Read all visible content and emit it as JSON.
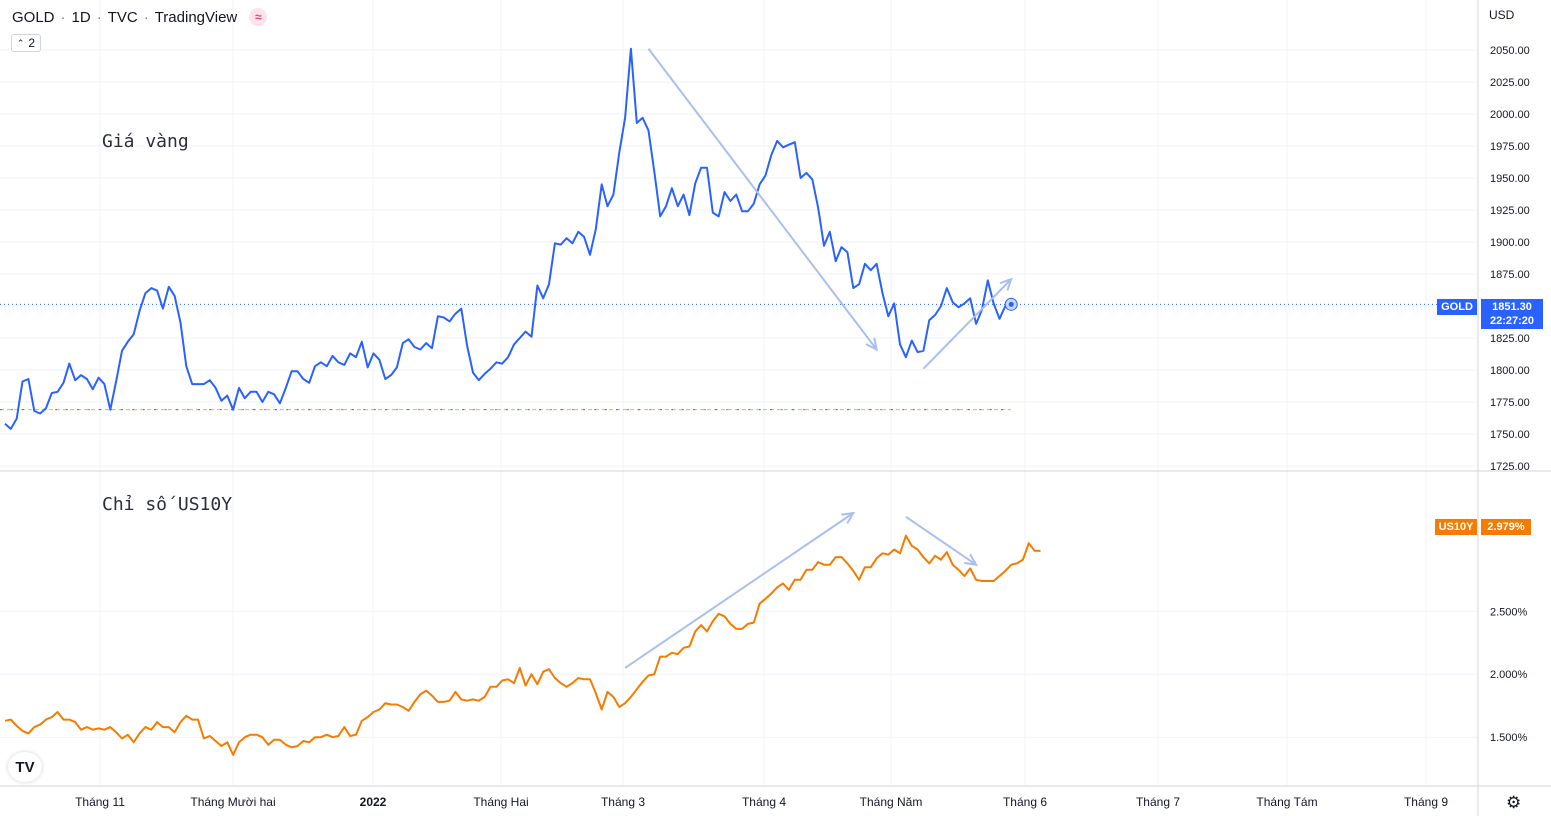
{
  "header": {
    "symbol": "GOLD",
    "interval": "1D",
    "exchange": "TVC",
    "source": "TradingView",
    "badge_icon": "wave-icon",
    "collapse_count": "2"
  },
  "captions": {
    "gold": "Giá vàng",
    "us10y": "Chỉ số US10Y"
  },
  "currency": "USD",
  "tags": {
    "gold_symbol": "GOLD",
    "gold_price": "1851.30",
    "gold_countdown": "22:27:20",
    "us10y_symbol": "US10Y",
    "us10y_value": "2.979%"
  },
  "logo": "TV",
  "colors": {
    "gold_line": "#2962ff",
    "us10y_line": "#f57c00",
    "arrow": "#a9bff0",
    "gold_tag": "#2962ff",
    "us10y_tag": "#f57c00"
  },
  "chart_data": [
    {
      "type": "line",
      "title": "Giá vàng",
      "series": [
        {
          "name": "GOLD",
          "values": [
            1758,
            1754,
            1762,
            1791,
            1793,
            1768,
            1766,
            1770,
            1782,
            1783,
            1790,
            1805,
            1792,
            1796,
            1793,
            1785,
            1794,
            1789,
            1769,
            1791,
            1815,
            1822,
            1828,
            1846,
            1860,
            1864,
            1862,
            1848,
            1865,
            1858,
            1837,
            1803,
            1789,
            1789,
            1789,
            1792,
            1786,
            1776,
            1780,
            1769,
            1786,
            1778,
            1783,
            1783,
            1775,
            1783,
            1781,
            1774,
            1786,
            1799,
            1799,
            1793,
            1790,
            1803,
            1806,
            1803,
            1811,
            1806,
            1804,
            1813,
            1810,
            1822,
            1802,
            1813,
            1808,
            1793,
            1796,
            1802,
            1821,
            1824,
            1818,
            1816,
            1821,
            1817,
            1842,
            1841,
            1838,
            1844,
            1848,
            1819,
            1798,
            1792,
            1797,
            1801,
            1806,
            1805,
            1810,
            1820,
            1825,
            1830,
            1826,
            1866,
            1856,
            1867,
            1899,
            1898,
            1903,
            1899,
            1908,
            1904,
            1890,
            1910,
            1945,
            1928,
            1937,
            1970,
            1997,
            2051,
            1993,
            1997,
            1987,
            1955,
            1920,
            1928,
            1942,
            1928,
            1937,
            1921,
            1946,
            1958,
            1958,
            1923,
            1920,
            1939,
            1932,
            1937,
            1924,
            1924,
            1930,
            1945,
            1952,
            1968,
            1979,
            1974,
            1976,
            1978,
            1950,
            1954,
            1949,
            1927,
            1897,
            1908,
            1885,
            1896,
            1892,
            1864,
            1867,
            1883,
            1878,
            1883,
            1860,
            1842,
            1852,
            1820,
            1810,
            1823,
            1814,
            1815,
            1839,
            1843,
            1850,
            1864,
            1853,
            1849,
            1852,
            1856,
            1836,
            1847,
            1870,
            1852,
            1840,
            1850,
            1851.3
          ]
        }
      ],
      "ylim": [
        1725,
        2075
      ],
      "yticks": [
        1725,
        1750,
        1775,
        1800,
        1825,
        1850,
        1875,
        1900,
        1925,
        1950,
        1975,
        2000,
        2025,
        2050
      ],
      "ytick_labels": [
        "1725.00",
        "1750.00",
        "1775.00",
        "1800.00",
        "1825.00",
        "1850.00",
        "1875.00",
        "1900.00",
        "1925.00",
        "1950.00",
        "1975.00",
        "2000.00",
        "2025.00",
        "2050.00"
      ],
      "last_value": 1851.3,
      "reference_level": 1769
    },
    {
      "type": "line",
      "title": "Chỉ số US10Y",
      "series": [
        {
          "name": "US10Y",
          "values": [
            1.63,
            1.64,
            1.59,
            1.55,
            1.53,
            1.58,
            1.6,
            1.64,
            1.66,
            1.7,
            1.64,
            1.64,
            1.62,
            1.56,
            1.58,
            1.56,
            1.57,
            1.56,
            1.58,
            1.54,
            1.49,
            1.52,
            1.46,
            1.53,
            1.58,
            1.56,
            1.62,
            1.58,
            1.58,
            1.54,
            1.62,
            1.67,
            1.64,
            1.64,
            1.49,
            1.51,
            1.47,
            1.43,
            1.46,
            1.36,
            1.46,
            1.5,
            1.52,
            1.52,
            1.5,
            1.44,
            1.48,
            1.48,
            1.44,
            1.42,
            1.43,
            1.47,
            1.46,
            1.5,
            1.5,
            1.52,
            1.5,
            1.51,
            1.58,
            1.51,
            1.52,
            1.63,
            1.66,
            1.7,
            1.72,
            1.77,
            1.76,
            1.76,
            1.74,
            1.71,
            1.78,
            1.84,
            1.87,
            1.83,
            1.78,
            1.78,
            1.79,
            1.86,
            1.8,
            1.79,
            1.8,
            1.79,
            1.82,
            1.9,
            1.9,
            1.95,
            1.96,
            1.93,
            2.05,
            1.91,
            2.0,
            1.92,
            2.02,
            2.04,
            1.97,
            1.93,
            1.9,
            1.93,
            1.97,
            1.96,
            1.96,
            1.85,
            1.72,
            1.86,
            1.82,
            1.74,
            1.77,
            1.82,
            1.88,
            1.94,
            1.99,
            2.0,
            2.14,
            2.14,
            2.17,
            2.16,
            2.21,
            2.22,
            2.34,
            2.39,
            2.34,
            2.42,
            2.48,
            2.46,
            2.4,
            2.36,
            2.36,
            2.4,
            2.41,
            2.56,
            2.6,
            2.64,
            2.69,
            2.72,
            2.67,
            2.75,
            2.75,
            2.83,
            2.83,
            2.89,
            2.87,
            2.87,
            2.93,
            2.93,
            2.88,
            2.82,
            2.75,
            2.85,
            2.85,
            2.92,
            2.96,
            2.95,
            2.99,
            2.96,
            3.1,
            3.02,
            2.99,
            2.93,
            2.88,
            2.94,
            2.91,
            2.97,
            2.87,
            2.83,
            2.78,
            2.84,
            2.75,
            2.74,
            2.74,
            2.74,
            2.78,
            2.82,
            2.87,
            2.88,
            2.91,
            3.04,
            2.98,
            2.979
          ]
        }
      ],
      "ylim": [
        1.2,
        3.55
      ],
      "yticks": [
        1.5,
        2.0,
        2.5
      ],
      "ytick_labels": [
        "1.500%",
        "2.000%",
        "2.500%"
      ],
      "last_value": 2.979
    }
  ],
  "x_axis": {
    "labels": [
      "Tháng 11",
      "Tháng Mười hai",
      "2022",
      "Tháng Hai",
      "Tháng 3",
      "Tháng 4",
      "Tháng Năm",
      "Tháng 6",
      "Tháng 7",
      "Tháng Tám",
      "Tháng 9"
    ],
    "bold": "2022"
  },
  "annotations": {
    "arrows": [
      {
        "panel": 0,
        "from": [
          110,
          2051
        ],
        "to": [
          149,
          1816
        ]
      },
      {
        "panel": 0,
        "from": [
          157,
          1801
        ],
        "to": [
          172,
          1871
        ]
      },
      {
        "panel": 1,
        "from": [
          106,
          2.05
        ],
        "to": [
          145,
          3.28
        ]
      },
      {
        "panel": 1,
        "from": [
          154,
          3.25
        ],
        "to": [
          166,
          2.87
        ]
      }
    ]
  }
}
